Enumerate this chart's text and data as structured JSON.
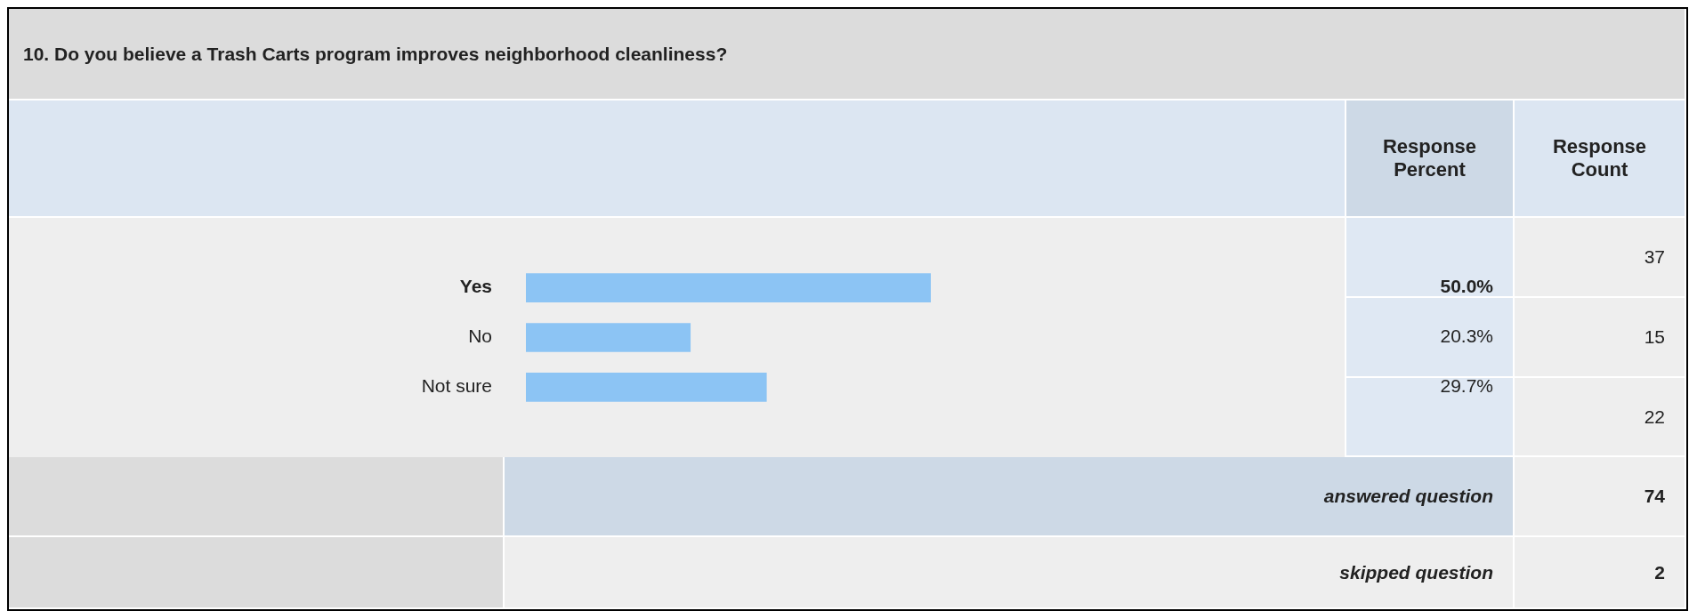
{
  "chart_data": {
    "type": "bar",
    "orientation": "horizontal",
    "title": "10. Do you believe a Trash Carts program improves neighborhood cleanliness?",
    "categories": [
      "Yes",
      "No",
      "Not sure"
    ],
    "values": [
      50.0,
      20.3,
      29.7
    ],
    "value_labels": [
      "50.0%",
      "20.3%",
      "29.7%"
    ],
    "color": "#8cc4f4",
    "tick_labels": "y",
    "annotations": [
      "Response Percent",
      "Response Count",
      "37",
      "15",
      "22",
      "answered question",
      "74",
      "skipped question",
      "2"
    ]
  }
}
